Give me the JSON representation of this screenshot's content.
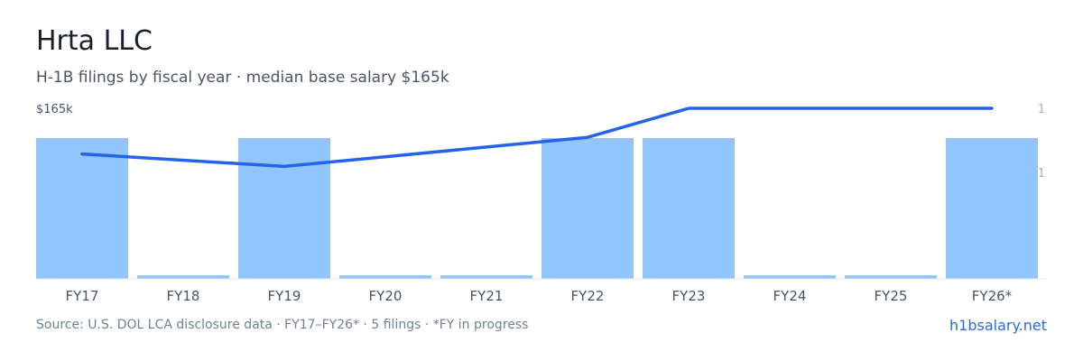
{
  "header": {
    "title": "Hrta LLC",
    "subtitle": "H-1B filings by fiscal year · median base salary $165k"
  },
  "footer": {
    "source": "Source: U.S. DOL LCA disclosure data · FY17–FY26* · 5 filings · *FY in progress",
    "brand": "h1bsalary.net"
  },
  "colors": {
    "bar": "#93c5fd",
    "line": "#2563eb",
    "axis": "#e2e8f0",
    "tick": "#4a5568",
    "right_tick": "#a0aec0"
  },
  "chart_data": {
    "type": "bar",
    "categories": [
      "FY17",
      "FY18",
      "FY19",
      "FY20",
      "FY21",
      "FY22",
      "FY23",
      "FY24",
      "FY25",
      "FY26*"
    ],
    "series": [
      {
        "type": "bar",
        "values": [
          1,
          0,
          1,
          0,
          0,
          1,
          1,
          0,
          0,
          1
        ]
      },
      {
        "type": "line",
        "values": [
          161,
          null,
          158,
          null,
          null,
          165,
          172,
          null,
          null,
          172
        ]
      }
    ],
    "left_axis": {
      "tick_label": "$165k"
    },
    "right_axis": {
      "tick_labels": [
        "1",
        "1"
      ]
    },
    "legend": "none",
    "grid": false
  }
}
